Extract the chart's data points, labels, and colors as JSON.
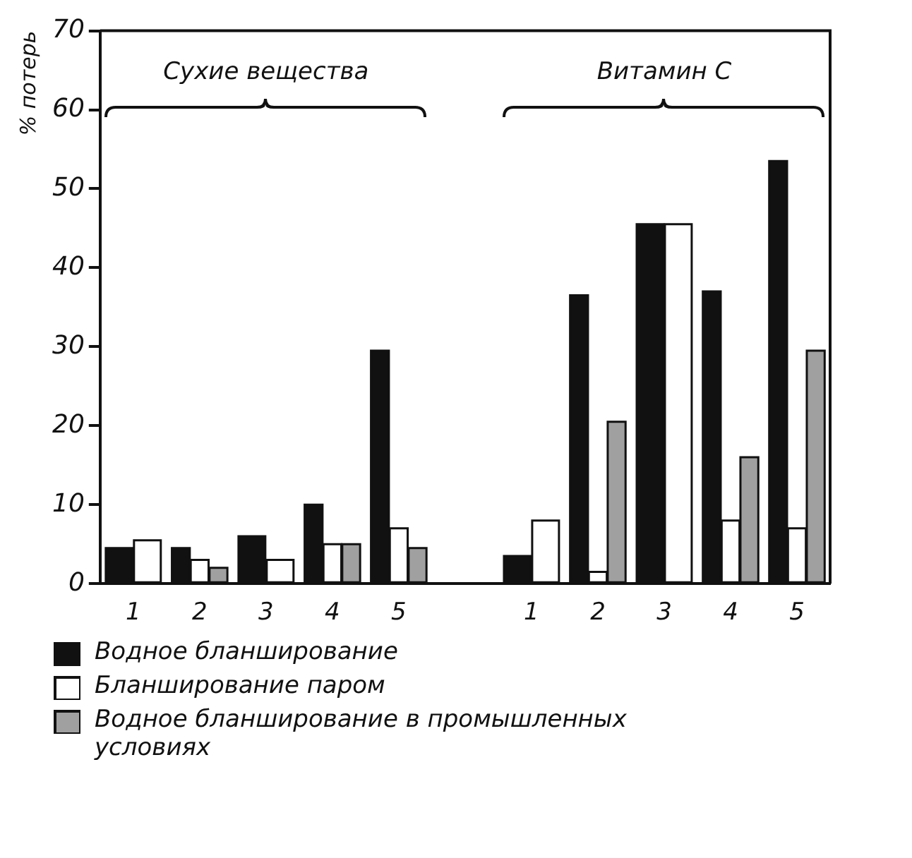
{
  "chart_data": {
    "type": "bar",
    "ylabel": "% потерь",
    "categories": [
      "1",
      "2",
      "3",
      "4",
      "5",
      null,
      "1",
      "2",
      "3",
      "4",
      "5"
    ],
    "series": [
      {
        "name": "Водное бланширование",
        "color": "#111111",
        "values": [
          4.5,
          4.5,
          6,
          10,
          29.5,
          null,
          3.5,
          36.5,
          45.5,
          37,
          53.5
        ]
      },
      {
        "name": "Бланширование паром",
        "color": "#ffffff",
        "values": [
          5.5,
          3,
          3,
          5,
          7,
          null,
          8,
          1.5,
          45.5,
          8,
          7
        ]
      },
      {
        "name": "Водное бланширование в промышленных условиях",
        "color": "#a0a0a0",
        "values": [
          null,
          2,
          null,
          5,
          4.5,
          null,
          null,
          20.5,
          null,
          16,
          29.5
        ]
      }
    ],
    "annotations": [
      "Сухие вещества",
      "Витамин С"
    ],
    "ylim": [
      0,
      70
    ],
    "yticks": [
      0,
      10,
      20,
      30,
      40,
      50,
      60,
      70
    ],
    "grid": false,
    "legend": "bottom"
  }
}
